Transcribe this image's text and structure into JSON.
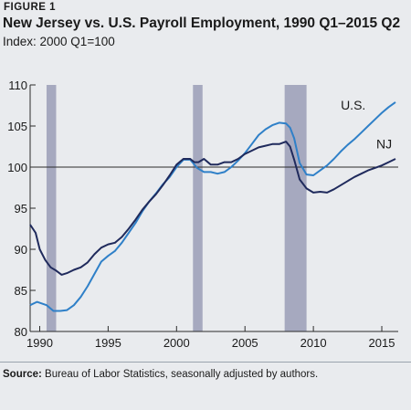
{
  "figure_label": "FIGURE 1",
  "title": "New Jersey vs. U.S. Payroll Employment, 1990 Q1–2015 Q2",
  "subtitle": "Index: 2000 Q1=100",
  "source": {
    "label": "Source:",
    "text": "Bureau of Labor Statistics, seasonally adjusted by authors."
  },
  "colors": {
    "nj": "#1f2a5c",
    "us": "#2f80c8",
    "recession": "#a6a9bf",
    "grid": "#2b2b2b"
  },
  "chart_data": {
    "type": "line",
    "ylim": [
      80,
      110
    ],
    "xlim": [
      1989.3,
      2016.2
    ],
    "yticks": [
      "80",
      "85",
      "90",
      "95",
      "100",
      "105",
      "110"
    ],
    "xticks": [
      "1990",
      "1995",
      "2000",
      "2005",
      "2010",
      "2015"
    ],
    "reference_line": 100,
    "recessions": [
      [
        1990.5,
        1991.2
      ],
      [
        2001.2,
        2001.9
      ],
      [
        2007.9,
        2009.5
      ]
    ],
    "series": [
      {
        "name": "U.S.",
        "x": [
          1989.3,
          1989.8,
          1990.5,
          1991.0,
          1991.5,
          1992.0,
          1992.5,
          1993.0,
          1993.5,
          1994.0,
          1994.5,
          1995.0,
          1995.5,
          1996.0,
          1996.5,
          1997.0,
          1997.5,
          1998.0,
          1998.5,
          1999.0,
          1999.5,
          2000.0,
          2000.5,
          2001.0,
          2001.5,
          2002.0,
          2002.5,
          2003.0,
          2003.5,
          2004.0,
          2004.5,
          2005.0,
          2005.5,
          2006.0,
          2006.5,
          2007.0,
          2007.5,
          2008.0,
          2008.3,
          2008.6,
          2009.0,
          2009.5,
          2010.0,
          2010.5,
          2011.0,
          2011.5,
          2012.0,
          2012.5,
          2013.0,
          2013.5,
          2014.0,
          2014.5,
          2015.0,
          2015.5,
          2016.0
        ],
        "y": [
          83.2,
          83.6,
          83.2,
          82.5,
          82.5,
          82.6,
          83.2,
          84.2,
          85.5,
          87.0,
          88.5,
          89.2,
          89.8,
          90.8,
          92.0,
          93.2,
          94.6,
          95.8,
          96.8,
          97.9,
          98.8,
          100.0,
          100.9,
          100.9,
          99.9,
          99.4,
          99.4,
          99.2,
          99.4,
          100.0,
          100.8,
          101.7,
          102.8,
          103.9,
          104.6,
          105.1,
          105.4,
          105.3,
          104.8,
          103.5,
          100.5,
          99.1,
          99.0,
          99.6,
          100.2,
          101.0,
          101.9,
          102.7,
          103.4,
          104.2,
          105.0,
          105.8,
          106.6,
          107.3,
          107.9
        ]
      },
      {
        "name": "NJ",
        "x": [
          1989.3,
          1989.7,
          1990.0,
          1990.4,
          1990.8,
          1991.2,
          1991.6,
          1992.0,
          1992.5,
          1993.0,
          1993.5,
          1994.0,
          1994.5,
          1995.0,
          1995.5,
          1996.0,
          1996.5,
          1997.0,
          1997.5,
          1998.0,
          1998.5,
          1999.0,
          1999.5,
          2000.0,
          2000.5,
          2001.0,
          2001.3,
          2001.6,
          2002.0,
          2002.5,
          2003.0,
          2003.5,
          2004.0,
          2004.5,
          2005.0,
          2005.5,
          2006.0,
          2006.5,
          2007.0,
          2007.5,
          2008.0,
          2008.3,
          2008.6,
          2009.0,
          2009.5,
          2010.0,
          2010.5,
          2011.0,
          2011.5,
          2012.0,
          2012.5,
          2013.0,
          2013.5,
          2014.0,
          2014.5,
          2015.0,
          2015.5,
          2016.0
        ],
        "y": [
          93.0,
          92.0,
          90.0,
          88.7,
          87.8,
          87.4,
          86.9,
          87.1,
          87.5,
          87.8,
          88.4,
          89.4,
          90.2,
          90.6,
          90.8,
          91.5,
          92.5,
          93.6,
          94.8,
          95.8,
          96.7,
          97.8,
          99.0,
          100.3,
          101.0,
          101.0,
          100.6,
          100.6,
          101.0,
          100.3,
          100.3,
          100.6,
          100.6,
          101.0,
          101.6,
          102.0,
          102.4,
          102.6,
          102.8,
          102.8,
          103.1,
          102.5,
          100.9,
          98.5,
          97.4,
          96.9,
          97.0,
          96.9,
          97.3,
          97.8,
          98.3,
          98.8,
          99.2,
          99.6,
          99.9,
          100.2,
          100.6,
          101.0
        ]
      }
    ]
  }
}
